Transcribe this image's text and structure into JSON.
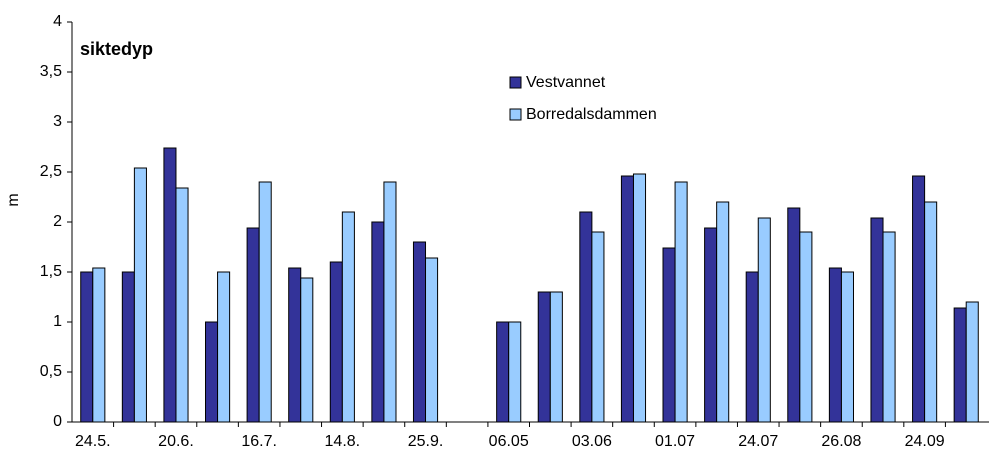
{
  "chart_data": {
    "type": "bar",
    "title": "siktedyp",
    "y_label": "m",
    "categories": [
      "24.5.",
      null,
      "20.6.",
      null,
      "16.7.",
      null,
      "14.8.",
      null,
      "25.9.",
      null,
      "06.05",
      null,
      "03.06",
      null,
      "01.07",
      null,
      "24.07",
      null,
      "26.08",
      null,
      "24.09",
      null
    ],
    "series": [
      {
        "name": "Vestvannet",
        "color": "#333399",
        "values": [
          1.5,
          1.5,
          2.74,
          1.0,
          1.94,
          1.54,
          1.6,
          2.0,
          1.8,
          null,
          1.0,
          1.3,
          2.1,
          2.46,
          1.74,
          1.94,
          1.5,
          2.14,
          1.54,
          2.04,
          2.46,
          1.14
        ]
      },
      {
        "name": "Borredalsdammen",
        "color": "#99ccff",
        "values": [
          1.54,
          2.54,
          2.34,
          1.5,
          2.4,
          1.44,
          2.1,
          2.4,
          1.64,
          null,
          1.0,
          1.3,
          1.9,
          2.48,
          2.4,
          2.2,
          2.04,
          1.9,
          1.5,
          1.9,
          2.2,
          1.2
        ]
      }
    ],
    "ylim": [
      0,
      4
    ],
    "yticks": [
      0,
      {
        "value": 0.5,
        "label": "0,5"
      },
      1,
      {
        "value": 1.5,
        "label": "1,5"
      },
      2,
      {
        "value": 2.5,
        "label": "2,5"
      },
      3,
      {
        "value": 3.5,
        "label": "3,5"
      },
      4
    ],
    "grid": false
  }
}
